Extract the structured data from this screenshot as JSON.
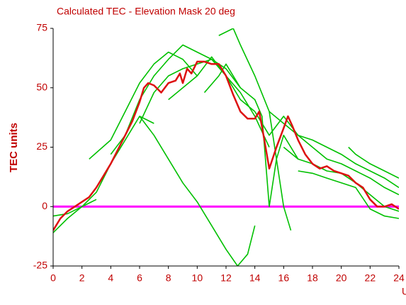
{
  "chart_data": {
    "type": "line",
    "title": "Calculated TEC - Elevation Mask 20 deg",
    "y_label": "TEC units",
    "x_label": "UT",
    "xlim": [
      0,
      24
    ],
    "xticks": [
      0,
      2,
      4,
      6,
      8,
      10,
      12,
      14,
      16,
      18,
      20,
      22,
      24
    ],
    "ylim": [
      -25,
      75
    ],
    "yticks": [
      -25,
      0,
      25,
      50,
      75
    ],
    "grid": false,
    "reference_line": {
      "value": 0,
      "color": "#ff00ff"
    },
    "series": [
      {
        "color": "#00c000",
        "x": [
          6,
          7,
          8,
          9,
          10,
          11,
          12,
          12.8,
          13.5,
          14
        ],
        "values": [
          38,
          30,
          20,
          10,
          2,
          -8,
          -18,
          -25,
          -20,
          -8
        ]
      },
      {
        "color": "#00c000",
        "x": [
          0,
          1,
          2,
          3,
          4,
          5,
          6,
          7
        ],
        "values": [
          -11,
          -5,
          0,
          6,
          18,
          28,
          38,
          35
        ]
      },
      {
        "color": "#00c000",
        "x": [
          2.5,
          4,
          5,
          6,
          7,
          8,
          9,
          10
        ],
        "values": [
          20,
          28,
          40,
          52,
          60,
          65,
          62,
          55
        ]
      },
      {
        "color": "#00c000",
        "x": [
          4,
          5,
          6,
          7,
          8,
          9,
          10,
          11,
          12,
          13
        ],
        "values": [
          22,
          30,
          45,
          55,
          62,
          68,
          65,
          62,
          58,
          50
        ]
      },
      {
        "color": "#00c000",
        "x": [
          6,
          7,
          8,
          9,
          10,
          11,
          12,
          13,
          14
        ],
        "values": [
          35,
          48,
          55,
          58,
          60,
          62,
          55,
          45,
          40
        ]
      },
      {
        "color": "#00c000",
        "x": [
          8,
          9,
          10,
          11,
          12,
          13,
          14,
          15
        ],
        "values": [
          45,
          50,
          55,
          63,
          55,
          48,
          38,
          25
        ]
      },
      {
        "color": "#00c000",
        "x": [
          11.5,
          12.5,
          13,
          14,
          15,
          15.5,
          16,
          16.5
        ],
        "values": [
          72,
          75,
          68,
          55,
          40,
          20,
          0,
          -10
        ]
      },
      {
        "color": "#00c000",
        "x": [
          10.5,
          11.5,
          12,
          13,
          14,
          14.5,
          15,
          15.5,
          16,
          17
        ],
        "values": [
          48,
          55,
          60,
          50,
          45,
          38,
          0,
          20,
          30,
          20
        ]
      },
      {
        "color": "#00c000",
        "x": [
          14,
          15,
          16,
          17,
          18,
          19,
          20,
          21,
          22,
          23,
          24
        ],
        "values": [
          40,
          30,
          38,
          30,
          25,
          20,
          18,
          15,
          12,
          8,
          5
        ]
      },
      {
        "color": "#00c000",
        "x": [
          15,
          16,
          17,
          18,
          19,
          20,
          21,
          22,
          23,
          24
        ],
        "values": [
          40,
          35,
          30,
          28,
          25,
          22,
          18,
          15,
          12,
          8
        ]
      },
      {
        "color": "#00c000",
        "x": [
          16,
          17,
          18,
          19,
          20,
          21,
          22,
          23,
          24
        ],
        "values": [
          25,
          20,
          18,
          15,
          14,
          10,
          5,
          0,
          -2
        ]
      },
      {
        "color": "#00c000",
        "x": [
          17,
          18,
          19,
          20,
          21,
          22,
          23,
          24
        ],
        "values": [
          15,
          14,
          12,
          10,
          8,
          -1,
          -4,
          -5
        ]
      },
      {
        "color": "#00c000",
        "x": [
          0,
          1,
          2,
          3
        ],
        "values": [
          -4,
          -3,
          0,
          3
        ]
      },
      {
        "color": "#00c000",
        "x": [
          20.5,
          21,
          22,
          23,
          24
        ],
        "values": [
          25,
          22,
          18,
          15,
          12
        ]
      },
      {
        "color": "#dd1111",
        "x": [
          0,
          0.5,
          1,
          1.5,
          2,
          2.5,
          3,
          3.5,
          4,
          4.5,
          5,
          5.5,
          6,
          6.3,
          6.6,
          7,
          7.5,
          8,
          8.5,
          8.8,
          9,
          9.3,
          9.6,
          10,
          10.5,
          11,
          11.5,
          12,
          12.5,
          13,
          13.5,
          14,
          14.3,
          14.6,
          15,
          15.5,
          16,
          16.3,
          16.6,
          17,
          17.5,
          18,
          18.5,
          19,
          19.5,
          20,
          20.5,
          21,
          21.5,
          22,
          22.5,
          23,
          23.5,
          24
        ],
        "values": [
          -10,
          -5,
          -2,
          0,
          2,
          4,
          8,
          13,
          18,
          24,
          30,
          36,
          44,
          50,
          52,
          51,
          48,
          52,
          53,
          56,
          52,
          58,
          56,
          61,
          61,
          60,
          60,
          55,
          47,
          40,
          37,
          37,
          40,
          30,
          16,
          25,
          33,
          38,
          34,
          28,
          22,
          18,
          16,
          17,
          15,
          14,
          13,
          10,
          8,
          3,
          0,
          0,
          1,
          -1
        ]
      }
    ]
  }
}
